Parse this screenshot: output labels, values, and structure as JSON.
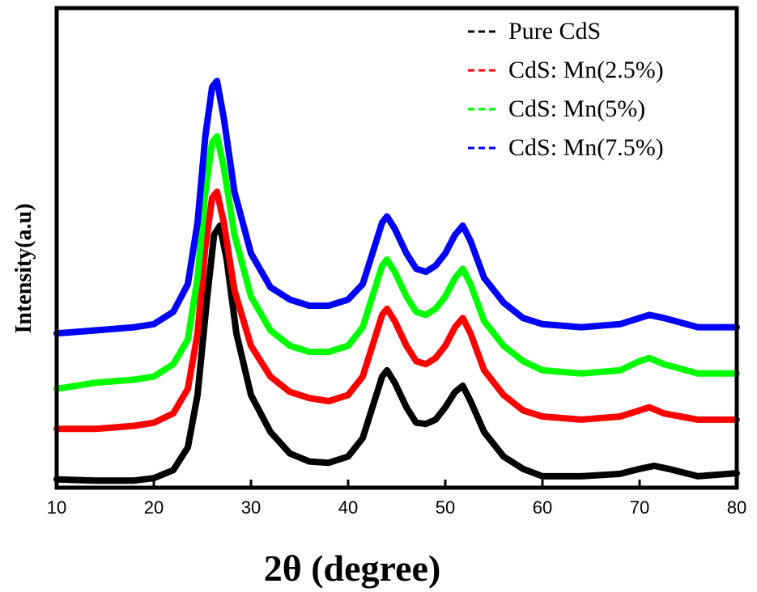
{
  "chart_data": {
    "type": "line",
    "title": "",
    "xlabel": "2θ (degree)",
    "ylabel": "Intensity(a.u)",
    "xlim": [
      10,
      80
    ],
    "xticks": [
      10,
      20,
      30,
      40,
      50,
      60,
      70,
      80
    ],
    "y_tick_labels": "none",
    "grid": false,
    "legend": {
      "position": "top-right",
      "line_style": "dashed"
    },
    "series": [
      {
        "name": "Pure CdS",
        "color": "#000000",
        "x": [
          10,
          14,
          18,
          20,
          22,
          23.5,
          24.5,
          25.5,
          26.2,
          26.8,
          27.5,
          28.5,
          30,
          32,
          34,
          36,
          38,
          40,
          41.5,
          42.5,
          43.5,
          44,
          44.8,
          46,
          47,
          48,
          49,
          50,
          51,
          51.8,
          52.6,
          54,
          56,
          58,
          60,
          64,
          68,
          70,
          71.5,
          73,
          76,
          80
        ],
        "y": [
          0.3,
          0.1,
          0.1,
          0.5,
          1.8,
          5.5,
          14,
          30,
          40,
          41.5,
          36,
          24,
          14,
          8,
          4.5,
          3.2,
          3,
          4,
          7,
          12,
          17,
          18,
          16,
          12,
          9.5,
          9.3,
          10,
          12,
          14.5,
          15.5,
          13,
          8,
          4,
          2,
          0.8,
          0.8,
          1.2,
          2,
          2.5,
          2,
          0.8,
          1.3
        ]
      },
      {
        "name": "CdS: Mn(2.5%)",
        "color": "#ff0000",
        "x": [
          10,
          14,
          18,
          20,
          22,
          23.5,
          24.5,
          25.3,
          26,
          26.5,
          27.2,
          28.3,
          30,
          32,
          34,
          36,
          38,
          40,
          41.5,
          42.5,
          43.5,
          44,
          44.8,
          46,
          47,
          48,
          49,
          50,
          51,
          51.8,
          52.6,
          54,
          56,
          58,
          60,
          64,
          68,
          70,
          71,
          72.5,
          76,
          80
        ],
        "y": [
          8.5,
          8.5,
          9,
          9.5,
          11,
          15,
          24,
          38,
          46,
          47,
          42,
          31,
          22,
          17,
          14.5,
          13.5,
          13,
          14,
          17,
          22,
          27,
          28,
          26,
          22,
          19.5,
          19,
          20,
          22,
          25,
          26.5,
          24,
          18,
          14,
          11.5,
          10.5,
          10,
          10.5,
          11.5,
          12,
          11,
          10,
          10
        ]
      },
      {
        "name": "CdS: Mn(5%)",
        "color": "#00ff00",
        "x": [
          10,
          14,
          18,
          20,
          22,
          23.5,
          24.5,
          25.3,
          26,
          26.5,
          27.2,
          28.3,
          30,
          32,
          34,
          36,
          38,
          40,
          41.5,
          42.5,
          43.5,
          44,
          44.8,
          46,
          47,
          48,
          49,
          50,
          51,
          51.8,
          52.6,
          54,
          56,
          58,
          60,
          64,
          68,
          70,
          71,
          72.5,
          76,
          80
        ],
        "y": [
          15,
          16,
          16.5,
          17,
          19,
          23,
          33,
          47,
          55,
          56,
          51,
          40,
          30,
          24.5,
          22,
          21,
          21,
          22,
          25,
          30,
          35,
          36,
          34,
          30,
          27.5,
          27,
          28,
          30,
          33,
          34.5,
          32,
          26,
          22,
          19.5,
          18,
          17.5,
          18,
          19.5,
          20,
          19,
          17.5,
          17.5
        ]
      },
      {
        "name": "CdS: Mn(7.5%)",
        "color": "#0000ff",
        "x": [
          10,
          14,
          18,
          20,
          22,
          23.5,
          24.5,
          25.3,
          26,
          26.5,
          27.2,
          28.3,
          30,
          32,
          34,
          36,
          38,
          40,
          41.5,
          42.5,
          43.5,
          44,
          44.8,
          46,
          47,
          48,
          49,
          50,
          51,
          51.8,
          52.6,
          54,
          56,
          58,
          60,
          64,
          68,
          70,
          71,
          72.5,
          76,
          80
        ],
        "y": [
          24,
          24.5,
          25,
          25.5,
          27.5,
          32,
          42,
          56,
          64,
          65,
          59,
          47,
          37,
          31.5,
          29.5,
          28.5,
          28.5,
          29.5,
          32,
          37,
          42,
          43,
          41,
          37,
          34.5,
          34,
          35,
          37,
          40,
          41.5,
          39,
          33,
          29,
          26.5,
          25.5,
          25,
          25.5,
          26.5,
          27,
          26.5,
          25,
          25
        ]
      }
    ]
  }
}
